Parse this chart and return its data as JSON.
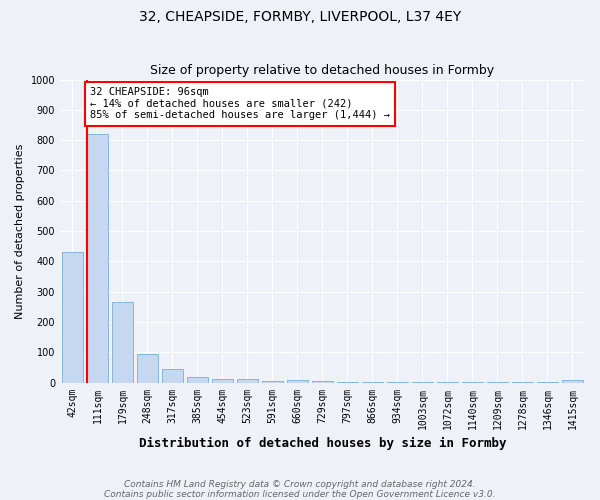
{
  "title": "32, CHEAPSIDE, FORMBY, LIVERPOOL, L37 4EY",
  "subtitle": "Size of property relative to detached houses in Formby",
  "xlabel": "Distribution of detached houses by size in Formby",
  "ylabel": "Number of detached properties",
  "categories": [
    "42sqm",
    "111sqm",
    "179sqm",
    "248sqm",
    "317sqm",
    "385sqm",
    "454sqm",
    "523sqm",
    "591sqm",
    "660sqm",
    "729sqm",
    "797sqm",
    "866sqm",
    "934sqm",
    "1003sqm",
    "1072sqm",
    "1140sqm",
    "1209sqm",
    "1278sqm",
    "1346sqm",
    "1415sqm"
  ],
  "values": [
    430,
    820,
    265,
    93,
    45,
    18,
    12,
    11,
    4,
    9,
    6,
    3,
    3,
    2,
    1,
    1,
    1,
    1,
    1,
    1,
    9
  ],
  "bar_color": "#c5d8ef",
  "bar_edge_color": "#7aafd4",
  "vline_color": "red",
  "ylim": [
    0,
    1000
  ],
  "yticks": [
    0,
    100,
    200,
    300,
    400,
    500,
    600,
    700,
    800,
    900,
    1000
  ],
  "annotation_text": "32 CHEAPSIDE: 96sqm\n← 14% of detached houses are smaller (242)\n85% of semi-detached houses are larger (1,444) →",
  "annotation_box_color": "white",
  "annotation_box_edge_color": "red",
  "footer_line1": "Contains HM Land Registry data © Crown copyright and database right 2024.",
  "footer_line2": "Contains public sector information licensed under the Open Government Licence v3.0.",
  "background_color": "#eef2f8",
  "grid_color": "white",
  "title_fontsize": 10,
  "xlabel_fontsize": 9,
  "ylabel_fontsize": 8,
  "tick_fontsize": 7,
  "annot_fontsize": 7.5,
  "footer_fontsize": 6.5
}
